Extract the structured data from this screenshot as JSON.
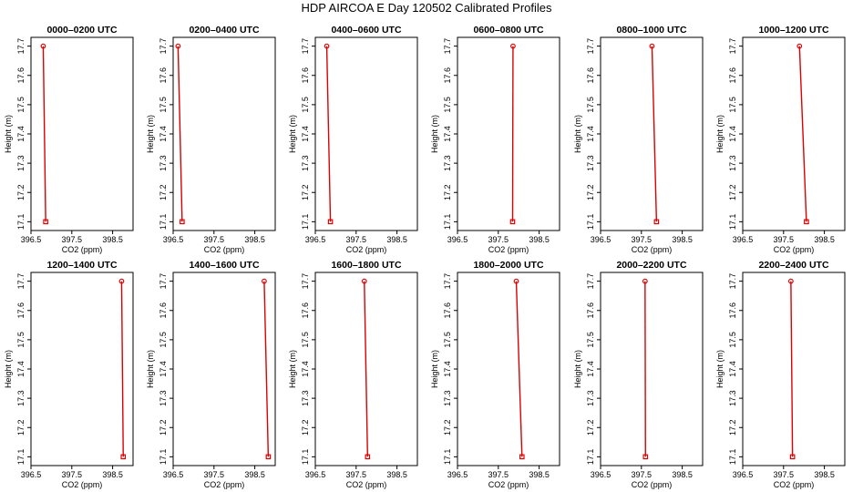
{
  "title": "HDP AIRCOA E  Day 120502  Calibrated Profiles",
  "colors": {
    "series": "#dd0000",
    "axis": "#000000",
    "background": "#ffffff"
  },
  "chart_data": [
    {
      "type": "line",
      "title": "0000–0200 UTC",
      "xlabel": "CO2 (ppm)",
      "ylabel": "Height (m)",
      "xlim": [
        396.5,
        399.0
      ],
      "ylim": [
        17.07,
        17.73
      ],
      "xticks": [
        "396.5",
        "397.5",
        "398.5"
      ],
      "yticks": [
        "17.1",
        "17.2",
        "17.3",
        "17.4",
        "17.5",
        "17.6",
        "17.7"
      ],
      "x": [
        396.8,
        396.86
      ],
      "y": [
        17.7,
        17.1
      ]
    },
    {
      "type": "line",
      "title": "0200–0400 UTC",
      "xlabel": "CO2 (ppm)",
      "ylabel": "Height (m)",
      "xlim": [
        396.5,
        399.0
      ],
      "ylim": [
        17.07,
        17.73
      ],
      "xticks": [
        "396.5",
        "397.5",
        "398.5"
      ],
      "yticks": [
        "17.1",
        "17.2",
        "17.3",
        "17.4",
        "17.5",
        "17.6",
        "17.7"
      ],
      "x": [
        396.62,
        396.72
      ],
      "y": [
        17.7,
        17.1
      ]
    },
    {
      "type": "line",
      "title": "0400–0600 UTC",
      "xlabel": "CO2 (ppm)",
      "ylabel": "Height (m)",
      "xlim": [
        396.5,
        399.0
      ],
      "ylim": [
        17.07,
        17.73
      ],
      "xticks": [
        "396.5",
        "397.5",
        "398.5"
      ],
      "yticks": [
        "17.1",
        "17.2",
        "17.3",
        "17.4",
        "17.5",
        "17.6",
        "17.7"
      ],
      "x": [
        396.78,
        396.87
      ],
      "y": [
        17.7,
        17.1
      ]
    },
    {
      "type": "line",
      "title": "0600–0800 UTC",
      "xlabel": "CO2 (ppm)",
      "ylabel": "Height (m)",
      "xlim": [
        396.5,
        399.0
      ],
      "ylim": [
        17.07,
        17.73
      ],
      "xticks": [
        "396.5",
        "397.5",
        "398.5"
      ],
      "yticks": [
        "17.1",
        "17.2",
        "17.3",
        "17.4",
        "17.5",
        "17.6",
        "17.7"
      ],
      "x": [
        397.86,
        397.85
      ],
      "y": [
        17.7,
        17.1
      ]
    },
    {
      "type": "line",
      "title": "0800–1000 UTC",
      "xlabel": "CO2 (ppm)",
      "ylabel": "Height (m)",
      "xlim": [
        396.5,
        399.0
      ],
      "ylim": [
        17.07,
        17.73
      ],
      "xticks": [
        "396.5",
        "397.5",
        "398.5"
      ],
      "yticks": [
        "17.1",
        "17.2",
        "17.3",
        "17.4",
        "17.5",
        "17.6",
        "17.7"
      ],
      "x": [
        397.76,
        397.87
      ],
      "y": [
        17.7,
        17.1
      ]
    },
    {
      "type": "line",
      "title": "1000–1200 UTC",
      "xlabel": "CO2 (ppm)",
      "ylabel": "Height (m)",
      "xlim": [
        396.5,
        399.0
      ],
      "ylim": [
        17.07,
        17.73
      ],
      "xticks": [
        "396.5",
        "397.5",
        "398.5"
      ],
      "yticks": [
        "17.1",
        "17.2",
        "17.3",
        "17.4",
        "17.5",
        "17.6",
        "17.7"
      ],
      "x": [
        397.89,
        398.06
      ],
      "y": [
        17.7,
        17.1
      ]
    },
    {
      "type": "line",
      "title": "1200–1400 UTC",
      "xlabel": "CO2 (ppm)",
      "ylabel": "Height (m)",
      "xlim": [
        396.5,
        399.0
      ],
      "ylim": [
        17.07,
        17.73
      ],
      "xticks": [
        "396.5",
        "397.5",
        "398.5"
      ],
      "yticks": [
        "17.1",
        "17.2",
        "17.3",
        "17.4",
        "17.5",
        "17.6",
        "17.7"
      ],
      "x": [
        398.72,
        398.76
      ],
      "y": [
        17.7,
        17.1
      ]
    },
    {
      "type": "line",
      "title": "1400–1600 UTC",
      "xlabel": "CO2 (ppm)",
      "ylabel": "Height (m)",
      "xlim": [
        396.5,
        399.0
      ],
      "ylim": [
        17.07,
        17.73
      ],
      "xticks": [
        "396.5",
        "397.5",
        "398.5"
      ],
      "yticks": [
        "17.1",
        "17.2",
        "17.3",
        "17.4",
        "17.5",
        "17.6",
        "17.7"
      ],
      "x": [
        398.73,
        398.83
      ],
      "y": [
        17.7,
        17.1
      ]
    },
    {
      "type": "line",
      "title": "1600–1800 UTC",
      "xlabel": "CO2 (ppm)",
      "ylabel": "Height (m)",
      "xlim": [
        396.5,
        399.0
      ],
      "ylim": [
        17.07,
        17.73
      ],
      "xticks": [
        "396.5",
        "397.5",
        "398.5"
      ],
      "yticks": [
        "17.1",
        "17.2",
        "17.3",
        "17.4",
        "17.5",
        "17.6",
        "17.7"
      ],
      "x": [
        397.7,
        397.78
      ],
      "y": [
        17.7,
        17.1
      ]
    },
    {
      "type": "line",
      "title": "1800–2000 UTC",
      "xlabel": "CO2 (ppm)",
      "ylabel": "Height (m)",
      "xlim": [
        396.5,
        399.0
      ],
      "ylim": [
        17.07,
        17.73
      ],
      "xticks": [
        "396.5",
        "397.5",
        "398.5"
      ],
      "yticks": [
        "17.1",
        "17.2",
        "17.3",
        "17.4",
        "17.5",
        "17.6",
        "17.7"
      ],
      "x": [
        397.94,
        398.08
      ],
      "y": [
        17.7,
        17.1
      ]
    },
    {
      "type": "line",
      "title": "2000–2200 UTC",
      "xlabel": "CO2 (ppm)",
      "ylabel": "Height (m)",
      "xlim": [
        396.5,
        399.0
      ],
      "ylim": [
        17.07,
        17.73
      ],
      "xticks": [
        "396.5",
        "397.5",
        "398.5"
      ],
      "yticks": [
        "17.1",
        "17.2",
        "17.3",
        "17.4",
        "17.5",
        "17.6",
        "17.7"
      ],
      "x": [
        397.59,
        397.6
      ],
      "y": [
        17.7,
        17.1
      ]
    },
    {
      "type": "line",
      "title": "2200–2400 UTC",
      "xlabel": "CO2 (ppm)",
      "ylabel": "Height (m)",
      "xlim": [
        396.5,
        399.0
      ],
      "ylim": [
        17.07,
        17.73
      ],
      "xticks": [
        "396.5",
        "397.5",
        "398.5"
      ],
      "yticks": [
        "17.1",
        "17.2",
        "17.3",
        "17.4",
        "17.5",
        "17.6",
        "17.7"
      ],
      "x": [
        397.68,
        397.72
      ],
      "y": [
        17.7,
        17.1
      ]
    }
  ]
}
